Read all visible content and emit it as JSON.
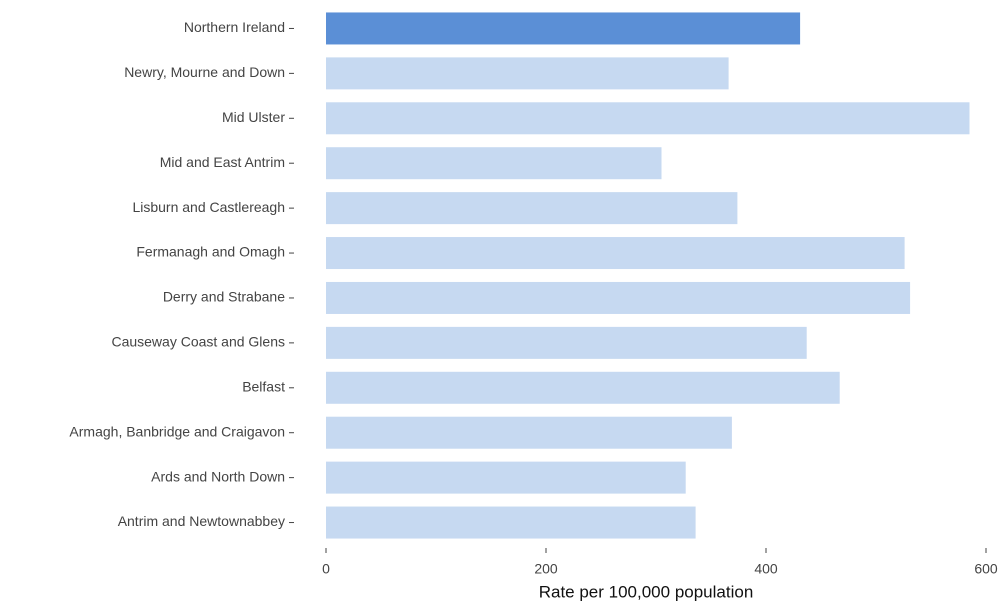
{
  "chart_data": {
    "type": "hbar",
    "x_label": "Rate per 100,000 population",
    "categories": [
      "Northern Ireland",
      "Newry, Mourne and Down",
      "Mid Ulster",
      "Mid and East Antrim",
      "Lisburn and Castlereagh",
      "Fermanagh and Omagh",
      "Derry and Strabane",
      "Causeway Coast and Glens",
      "Belfast",
      "Armagh, Banbridge and Craigavon",
      "Ards and North Down",
      "Antrim and Newtownabbey"
    ],
    "values": [
      431,
      366,
      585,
      305,
      374,
      526,
      531,
      437,
      467,
      369,
      327,
      336
    ],
    "colors": [
      "#5b8fd6",
      "#c6d9f1",
      "#c6d9f1",
      "#c6d9f1",
      "#c6d9f1",
      "#c6d9f1",
      "#c6d9f1",
      "#c6d9f1",
      "#c6d9f1",
      "#c6d9f1",
      "#c6d9f1",
      "#c6d9f1"
    ],
    "xlim": [
      0,
      600
    ],
    "xticks": [
      0,
      200,
      400,
      600
    ],
    "grid": false
  }
}
